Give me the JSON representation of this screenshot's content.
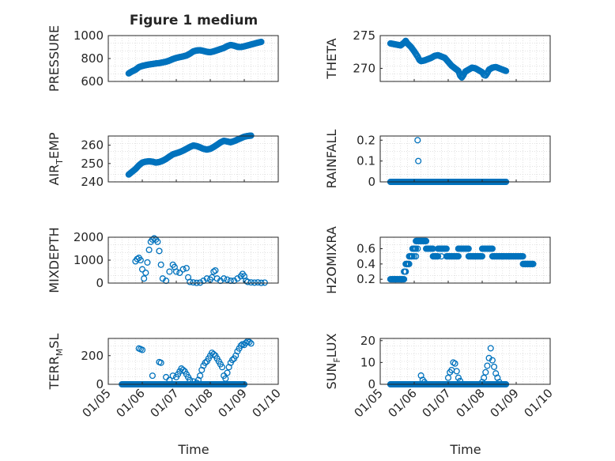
{
  "figure": {
    "title": "Figure 1 medium",
    "xlabel": "Time",
    "colors": {
      "marker": "#0072bd",
      "axis": "#262626",
      "grid": "#d0d0d0",
      "background": "#ffffff"
    }
  },
  "chart_data": [
    {
      "type": "scatter",
      "panel": "left-1",
      "ylabel": "PRESSURE",
      "ylim": [
        600,
        1000
      ],
      "yticks": [
        "600",
        "800",
        "1000"
      ],
      "show_xticks": false,
      "x_range": [
        0,
        5
      ],
      "xticks": [
        "01/05",
        "01/06",
        "01/07",
        "01/08",
        "01/09",
        "01/10"
      ],
      "points": [
        [
          0.6,
          670
        ],
        [
          0.7,
          688
        ],
        [
          0.8,
          702
        ],
        [
          0.9,
          725
        ],
        [
          1.0,
          735
        ],
        [
          1.1,
          742
        ],
        [
          1.2,
          748
        ],
        [
          1.3,
          752
        ],
        [
          1.4,
          757
        ],
        [
          1.5,
          760
        ],
        [
          1.6,
          766
        ],
        [
          1.7,
          772
        ],
        [
          1.8,
          782
        ],
        [
          1.9,
          795
        ],
        [
          2.0,
          805
        ],
        [
          2.1,
          812
        ],
        [
          2.2,
          818
        ],
        [
          2.3,
          826
        ],
        [
          2.4,
          842
        ],
        [
          2.5,
          862
        ],
        [
          2.6,
          870
        ],
        [
          2.7,
          872
        ],
        [
          2.8,
          866
        ],
        [
          2.9,
          858
        ],
        [
          3.0,
          855
        ],
        [
          3.1,
          862
        ],
        [
          3.2,
          872
        ],
        [
          3.3,
          882
        ],
        [
          3.4,
          892
        ],
        [
          3.5,
          908
        ],
        [
          3.6,
          918
        ],
        [
          3.7,
          912
        ],
        [
          3.8,
          902
        ],
        [
          3.9,
          900
        ],
        [
          4.0,
          906
        ],
        [
          4.1,
          914
        ],
        [
          4.2,
          922
        ],
        [
          4.3,
          930
        ],
        [
          4.4,
          938
        ],
        [
          4.5,
          945
        ]
      ]
    },
    {
      "type": "scatter",
      "panel": "right-1",
      "ylabel": "THETA",
      "ylim": [
        268,
        275
      ],
      "yticks": [
        "270",
        "275"
      ],
      "ytick_values": [
        270,
        275
      ],
      "show_xticks": false,
      "x_range": [
        0,
        5
      ],
      "xticks": [
        "01/05",
        "01/06",
        "01/07",
        "01/08",
        "01/09",
        "01/10"
      ],
      "points": [
        [
          0.3,
          273.8
        ],
        [
          0.4,
          273.7
        ],
        [
          0.5,
          273.6
        ],
        [
          0.6,
          273.5
        ],
        [
          0.7,
          273.9
        ],
        [
          0.75,
          274.2
        ],
        [
          0.8,
          273.8
        ],
        [
          0.9,
          273.3
        ],
        [
          1.0,
          272.6
        ],
        [
          1.1,
          271.8
        ],
        [
          1.15,
          271.3
        ],
        [
          1.2,
          271.1
        ],
        [
          1.3,
          271.2
        ],
        [
          1.4,
          271.4
        ],
        [
          1.5,
          271.6
        ],
        [
          1.6,
          271.9
        ],
        [
          1.7,
          272.0
        ],
        [
          1.8,
          271.8
        ],
        [
          1.9,
          271.6
        ],
        [
          2.0,
          271.0
        ],
        [
          2.1,
          270.4
        ],
        [
          2.2,
          270.0
        ],
        [
          2.3,
          269.6
        ],
        [
          2.35,
          268.9
        ],
        [
          2.4,
          268.6
        ],
        [
          2.45,
          269.0
        ],
        [
          2.5,
          269.5
        ],
        [
          2.6,
          269.8
        ],
        [
          2.7,
          270.1
        ],
        [
          2.8,
          270.0
        ],
        [
          2.9,
          269.7
        ],
        [
          3.0,
          269.4
        ],
        [
          3.05,
          269.0
        ],
        [
          3.1,
          268.9
        ],
        [
          3.15,
          269.3
        ],
        [
          3.2,
          269.8
        ],
        [
          3.3,
          270.1
        ],
        [
          3.4,
          270.2
        ],
        [
          3.5,
          270.0
        ],
        [
          3.6,
          269.8
        ],
        [
          3.7,
          269.6
        ]
      ]
    },
    {
      "type": "scatter",
      "panel": "left-2",
      "ylabel": "AIR_TEMP",
      "ylabel_main": "AIR",
      "ylabel_sub": "T",
      "ylabel_rest": "EMP",
      "ylim": [
        240,
        265
      ],
      "yticks": [
        "240",
        "250",
        "260"
      ],
      "ytick_values": [
        240,
        250,
        260
      ],
      "show_xticks": false,
      "x_range": [
        0,
        5
      ],
      "xticks": [
        "01/05",
        "01/06",
        "01/07",
        "01/08",
        "01/09",
        "01/10"
      ],
      "points": [
        [
          0.6,
          244.0
        ],
        [
          0.7,
          245.5
        ],
        [
          0.8,
          247.0
        ],
        [
          0.9,
          249.0
        ],
        [
          1.0,
          250.5
        ],
        [
          1.1,
          251.0
        ],
        [
          1.2,
          251.2
        ],
        [
          1.3,
          251.0
        ],
        [
          1.4,
          250.5
        ],
        [
          1.5,
          250.8
        ],
        [
          1.6,
          251.5
        ],
        [
          1.7,
          252.5
        ],
        [
          1.8,
          253.8
        ],
        [
          1.9,
          255.0
        ],
        [
          2.0,
          255.6
        ],
        [
          2.1,
          256.2
        ],
        [
          2.2,
          257.0
        ],
        [
          2.3,
          258.0
        ],
        [
          2.4,
          259.0
        ],
        [
          2.5,
          259.8
        ],
        [
          2.6,
          259.5
        ],
        [
          2.7,
          258.8
        ],
        [
          2.8,
          258.0
        ],
        [
          2.9,
          257.6
        ],
        [
          3.0,
          258.0
        ],
        [
          3.1,
          259.0
        ],
        [
          3.2,
          260.2
        ],
        [
          3.3,
          261.5
        ],
        [
          3.4,
          262.4
        ],
        [
          3.5,
          262.0
        ],
        [
          3.6,
          261.6
        ],
        [
          3.7,
          262.2
        ],
        [
          3.8,
          263.0
        ],
        [
          3.9,
          263.8
        ],
        [
          4.0,
          264.6
        ],
        [
          4.1,
          265.0
        ],
        [
          4.2,
          265.2
        ]
      ]
    },
    {
      "type": "scatter",
      "panel": "right-2",
      "ylabel": "RAINFALL",
      "ylim": [
        0,
        0.22
      ],
      "yticks": [
        "0",
        "0.1",
        "0.2"
      ],
      "ytick_values": [
        0,
        0.1,
        0.2
      ],
      "show_xticks": false,
      "x_range": [
        0,
        5
      ],
      "xticks": [
        "01/05",
        "01/06",
        "01/07",
        "01/08",
        "01/09",
        "01/10"
      ],
      "zero_range": [
        0.3,
        3.7
      ],
      "points": [
        [
          1.1,
          0.2
        ],
        [
          1.12,
          0.1
        ]
      ]
    },
    {
      "type": "scatter",
      "panel": "left-3",
      "ylabel": "MIXDEPTH",
      "ylim": [
        0,
        2000
      ],
      "yticks": [
        "0",
        "1000",
        "2000"
      ],
      "ytick_values": [
        0,
        1000,
        2000
      ],
      "show_xticks": false,
      "x_range": [
        0,
        5
      ],
      "xticks": [
        "01/05",
        "01/06",
        "01/07",
        "01/08",
        "01/09",
        "01/10"
      ],
      "points": [
        [
          0.8,
          950
        ],
        [
          0.85,
          1050
        ],
        [
          0.9,
          1100
        ],
        [
          0.95,
          1000
        ],
        [
          1.0,
          600
        ],
        [
          1.05,
          200
        ],
        [
          1.1,
          450
        ],
        [
          1.15,
          900
        ],
        [
          1.2,
          1450
        ],
        [
          1.25,
          1800
        ],
        [
          1.3,
          1900
        ],
        [
          1.35,
          1950
        ],
        [
          1.4,
          1900
        ],
        [
          1.45,
          1800
        ],
        [
          1.5,
          1400
        ],
        [
          1.55,
          800
        ],
        [
          1.6,
          200
        ],
        [
          1.7,
          100
        ],
        [
          1.8,
          500
        ],
        [
          1.9,
          800
        ],
        [
          1.95,
          700
        ],
        [
          2.0,
          500
        ],
        [
          2.1,
          450
        ],
        [
          2.2,
          600
        ],
        [
          2.3,
          650
        ],
        [
          2.35,
          250
        ],
        [
          2.4,
          50
        ],
        [
          2.5,
          30
        ],
        [
          2.6,
          10
        ],
        [
          2.7,
          20
        ],
        [
          2.8,
          100
        ],
        [
          2.9,
          200
        ],
        [
          3.0,
          150
        ],
        [
          3.05,
          250
        ],
        [
          3.1,
          500
        ],
        [
          3.15,
          550
        ],
        [
          3.2,
          200
        ],
        [
          3.3,
          100
        ],
        [
          3.4,
          200
        ],
        [
          3.5,
          150
        ],
        [
          3.6,
          100
        ],
        [
          3.7,
          100
        ],
        [
          3.8,
          200
        ],
        [
          3.9,
          300
        ],
        [
          3.95,
          400
        ],
        [
          4.0,
          300
        ],
        [
          4.05,
          100
        ],
        [
          4.1,
          50
        ],
        [
          4.2,
          30
        ],
        [
          4.3,
          20
        ],
        [
          4.4,
          30
        ],
        [
          4.5,
          10
        ],
        [
          4.6,
          20
        ]
      ]
    },
    {
      "type": "scatter",
      "panel": "right-3",
      "ylabel": "H2OMIXRA",
      "ylim": [
        0.15,
        0.75
      ],
      "yticks": [
        "0.2",
        "0.4",
        "0.6"
      ],
      "ytick_values": [
        0.2,
        0.4,
        0.6
      ],
      "show_xticks": false,
      "x_range": [
        0,
        5
      ],
      "xticks": [
        "01/05",
        "01/06",
        "01/07",
        "01/08",
        "01/09",
        "01/10"
      ],
      "segments": [
        [
          0.3,
          0.45,
          0.2
        ],
        [
          0.45,
          0.7,
          0.2
        ],
        [
          0.7,
          0.75,
          0.3
        ],
        [
          0.75,
          0.85,
          0.4
        ],
        [
          0.85,
          0.95,
          0.5
        ],
        [
          0.95,
          1.05,
          0.6
        ],
        [
          1.05,
          1.35,
          0.7
        ],
        [
          1.35,
          1.55,
          0.6
        ],
        [
          1.55,
          1.7,
          0.5
        ],
        [
          1.7,
          1.95,
          0.6
        ],
        [
          1.95,
          2.3,
          0.5
        ],
        [
          2.3,
          2.6,
          0.6
        ],
        [
          2.6,
          2.8,
          0.5
        ],
        [
          2.8,
          3.0,
          0.5
        ],
        [
          3.0,
          3.3,
          0.6
        ],
        [
          3.3,
          3.8,
          0.5
        ],
        [
          3.8,
          4.2,
          0.5
        ],
        [
          4.2,
          4.5,
          0.4
        ]
      ],
      "points": [
        [
          1.0,
          0.5
        ],
        [
          1.05,
          0.5
        ],
        [
          1.1,
          0.6
        ],
        [
          1.8,
          0.5
        ],
        [
          2.3,
          0.6
        ],
        [
          2.35,
          0.6
        ],
        [
          3.6,
          0.5
        ]
      ]
    },
    {
      "type": "scatter",
      "panel": "left-4",
      "ylabel": "TERR_MSL",
      "ylabel_main": "TERR",
      "ylabel_sub": "M",
      "ylabel_rest": "SL",
      "ylim": [
        0,
        320
      ],
      "yticks": [
        "0",
        "200"
      ],
      "ytick_values": [
        0,
        200
      ],
      "show_xticks": true,
      "x_range": [
        0,
        5
      ],
      "xticks": [
        "01/05",
        "01/06",
        "01/07",
        "01/08",
        "01/09",
        "01/10"
      ],
      "zero_range": [
        0.4,
        4.0
      ],
      "points": [
        [
          0.9,
          250
        ],
        [
          0.95,
          245
        ],
        [
          1.0,
          240
        ],
        [
          1.3,
          60
        ],
        [
          1.5,
          155
        ],
        [
          1.55,
          150
        ],
        [
          1.7,
          50
        ],
        [
          1.8,
          30
        ],
        [
          1.9,
          60
        ],
        [
          2.0,
          50
        ],
        [
          2.05,
          70
        ],
        [
          2.1,
          90
        ],
        [
          2.15,
          110
        ],
        [
          2.2,
          100
        ],
        [
          2.25,
          90
        ],
        [
          2.3,
          70
        ],
        [
          2.35,
          50
        ],
        [
          2.4,
          30
        ],
        [
          2.5,
          20
        ],
        [
          2.6,
          10
        ],
        [
          2.65,
          30
        ],
        [
          2.7,
          60
        ],
        [
          2.75,
          100
        ],
        [
          2.8,
          130
        ],
        [
          2.85,
          150
        ],
        [
          2.9,
          160
        ],
        [
          2.95,
          180
        ],
        [
          3.0,
          200
        ],
        [
          3.05,
          220
        ],
        [
          3.1,
          210
        ],
        [
          3.15,
          200
        ],
        [
          3.2,
          180
        ],
        [
          3.25,
          160
        ],
        [
          3.3,
          140
        ],
        [
          3.35,
          120
        ],
        [
          3.4,
          60
        ],
        [
          3.45,
          40
        ],
        [
          3.5,
          80
        ],
        [
          3.55,
          120
        ],
        [
          3.6,
          150
        ],
        [
          3.65,
          170
        ],
        [
          3.7,
          180
        ],
        [
          3.75,
          200
        ],
        [
          3.8,
          230
        ],
        [
          3.85,
          250
        ],
        [
          3.9,
          270
        ],
        [
          3.95,
          280
        ],
        [
          4.0,
          275
        ],
        [
          4.05,
          290
        ],
        [
          4.1,
          300
        ],
        [
          4.15,
          295
        ],
        [
          4.2,
          285
        ]
      ]
    },
    {
      "type": "scatter",
      "panel": "right-4",
      "ylabel": "SUN_FLUX",
      "ylabel_main": "SUN",
      "ylabel_sub": "F",
      "ylabel_rest": "LUX",
      "ylim": [
        0,
        21
      ],
      "yticks": [
        "0",
        "10",
        "20"
      ],
      "ytick_values": [
        0,
        10,
        20
      ],
      "show_xticks": true,
      "x_range": [
        0,
        5
      ],
      "xticks": [
        "01/05",
        "01/06",
        "01/07",
        "01/08",
        "01/09",
        "01/10"
      ],
      "zero_range": [
        0.3,
        3.7
      ],
      "points": [
        [
          1.2,
          4.0
        ],
        [
          1.25,
          2.0
        ],
        [
          1.3,
          1.0
        ],
        [
          2.0,
          3.0
        ],
        [
          2.05,
          5.5
        ],
        [
          2.1,
          6.5
        ],
        [
          2.15,
          10.0
        ],
        [
          2.2,
          9.5
        ],
        [
          2.25,
          6.0
        ],
        [
          2.3,
          3.0
        ],
        [
          2.35,
          1.5
        ],
        [
          3.0,
          1.0
        ],
        [
          3.05,
          3.0
        ],
        [
          3.1,
          5.5
        ],
        [
          3.15,
          8.5
        ],
        [
          3.2,
          12.0
        ],
        [
          3.25,
          16.5
        ],
        [
          3.3,
          11.0
        ],
        [
          3.35,
          8.0
        ],
        [
          3.4,
          5.0
        ],
        [
          3.45,
          3.0
        ],
        [
          3.5,
          1.0
        ]
      ]
    }
  ]
}
